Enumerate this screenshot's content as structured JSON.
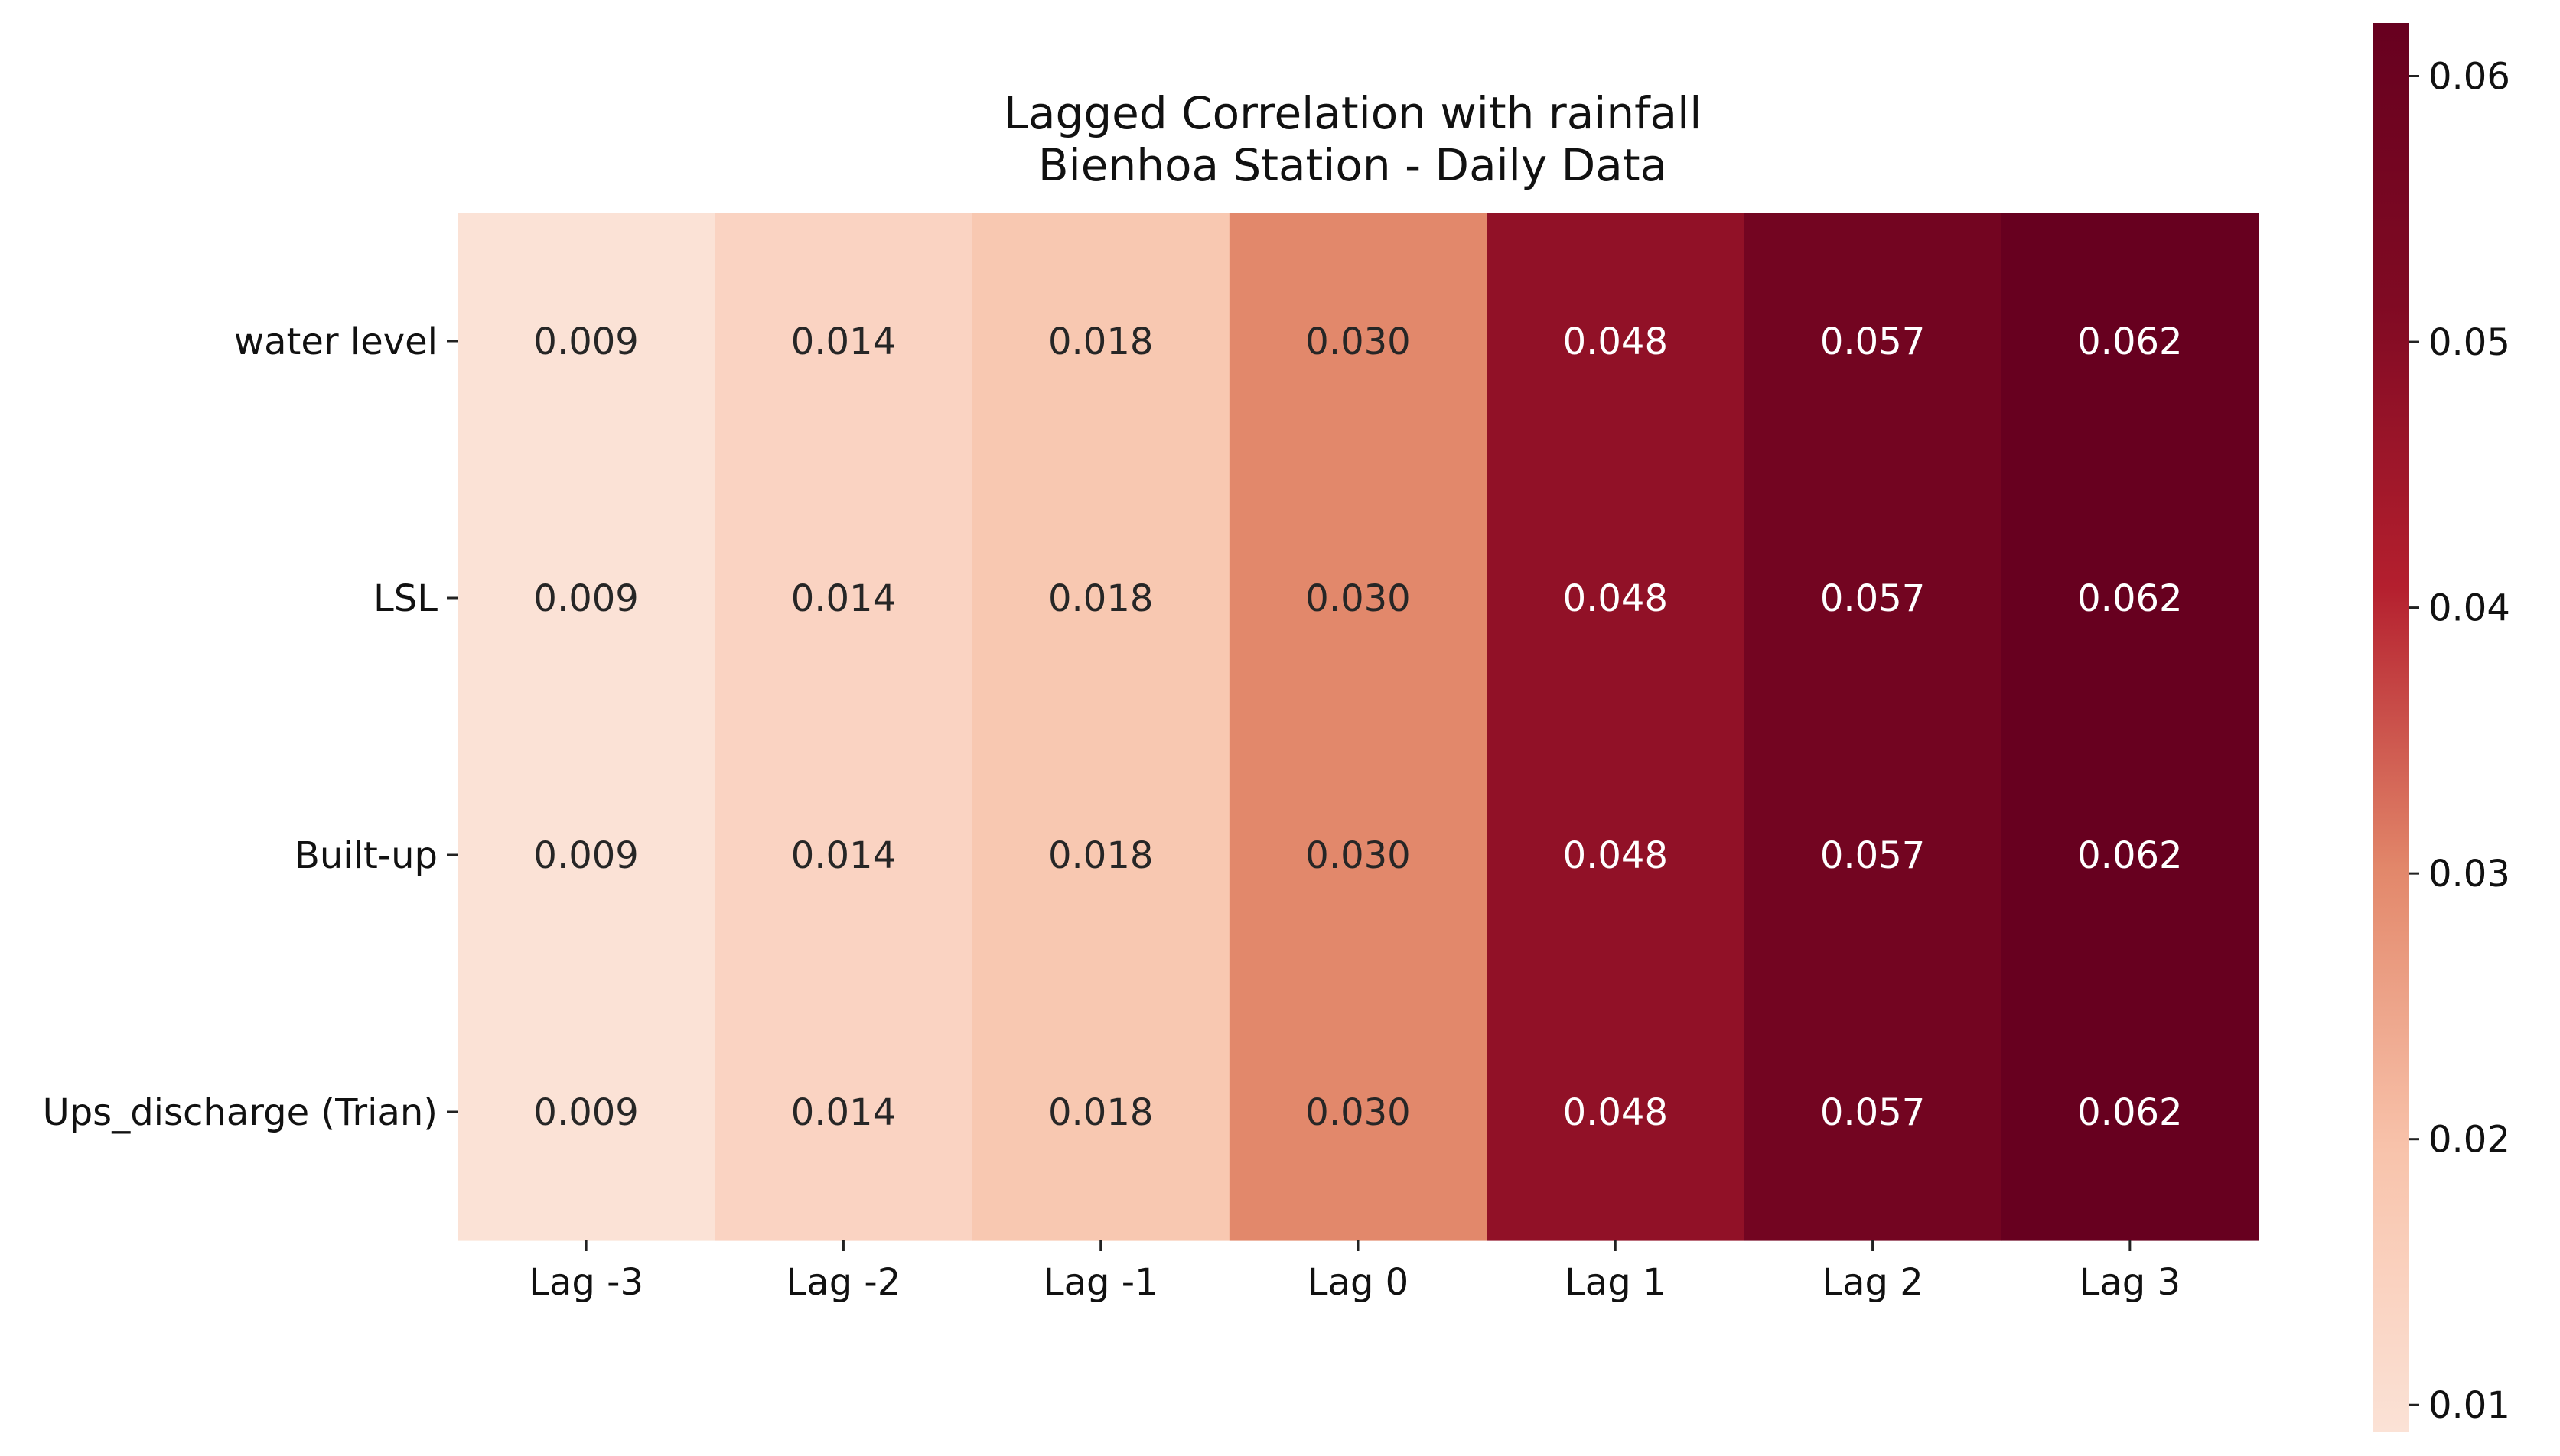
{
  "chart_data": {
    "type": "heatmap",
    "title": "Lagged Correlation with rainfall",
    "subtitle": "Bienhoa Station - Daily Data",
    "xlabel": "",
    "ylabel": "",
    "x_categories": [
      "Lag -3",
      "Lag -2",
      "Lag -1",
      "Lag 0",
      "Lag 1",
      "Lag 2",
      "Lag 3"
    ],
    "y_categories": [
      "water level",
      "LSL",
      "Built-up",
      "Ups_discharge (Trian)"
    ],
    "values": [
      [
        0.009,
        0.014,
        0.018,
        0.03,
        0.048,
        0.057,
        0.062
      ],
      [
        0.009,
        0.014,
        0.018,
        0.03,
        0.048,
        0.057,
        0.062
      ],
      [
        0.009,
        0.014,
        0.018,
        0.03,
        0.048,
        0.057,
        0.062
      ],
      [
        0.009,
        0.014,
        0.018,
        0.03,
        0.048,
        0.057,
        0.062
      ]
    ],
    "value_labels": [
      [
        "0.009",
        "0.014",
        "0.018",
        "0.030",
        "0.048",
        "0.057",
        "0.062"
      ],
      [
        "0.009",
        "0.014",
        "0.018",
        "0.030",
        "0.048",
        "0.057",
        "0.062"
      ],
      [
        "0.009",
        "0.014",
        "0.018",
        "0.030",
        "0.048",
        "0.057",
        "0.062"
      ],
      [
        "0.009",
        "0.014",
        "0.018",
        "0.030",
        "0.048",
        "0.057",
        "0.062"
      ]
    ],
    "colormap": "Reds",
    "colormap_stops": [
      "#fbe2d6",
      "#f8c3ab",
      "#e2876a",
      "#b41f2e",
      "#800a23",
      "#67001f"
    ],
    "colorbar": {
      "range": [
        0.009,
        0.062
      ],
      "ticks": [
        0.01,
        0.02,
        0.03,
        0.04,
        0.05,
        0.06
      ],
      "tick_labels": [
        "0.01",
        "0.02",
        "0.03",
        "0.04",
        "0.05",
        "0.06"
      ],
      "position": "right"
    },
    "grid": false,
    "legend": "none"
  }
}
